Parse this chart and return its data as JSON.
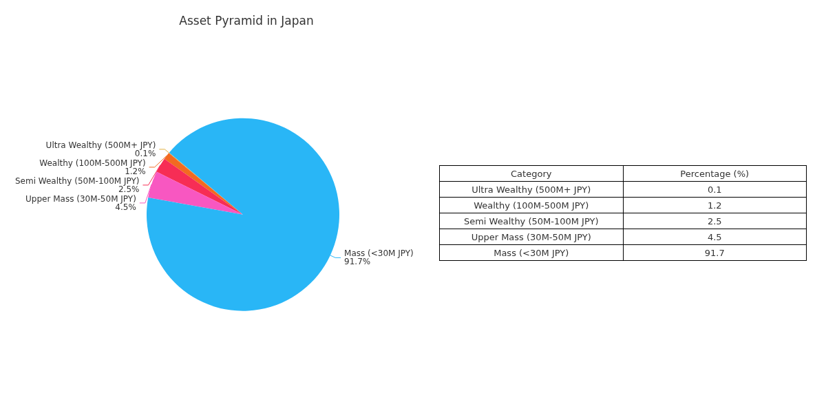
{
  "chart_data": [
    {
      "type": "pie",
      "title": "Asset Pyramid in Japan",
      "categories": [
        "Ultra Wealthy (500M+ JPY)",
        "Wealthy (100M-500M JPY)",
        "Semi Wealthy (50M-100M JPY)",
        "Upper Mass (30M-50M JPY)",
        "Mass (<30M JPY)"
      ],
      "values": [
        0.1,
        1.2,
        2.5,
        4.5,
        91.7
      ],
      "value_labels": [
        "0.1%",
        "1.2%",
        "2.5%",
        "4.5%",
        "91.7%"
      ],
      "colors": [
        "#e0b040",
        "#f26a21",
        "#f72d55",
        "#f857c1",
        "#29b6f6"
      ]
    },
    {
      "type": "other",
      "categories": [
        "Ultra Wealthy (500M+ JPY)",
        "Wealthy (100M-500M JPY)",
        "Semi Wealthy (50M-100M JPY)",
        "Upper Mass (30M-50M JPY)",
        "Mass (<30M JPY)"
      ],
      "values": [
        0.1,
        1.2,
        2.5,
        4.5,
        91.7
      ],
      "data_labels": true,
      "annotations": [
        "Category",
        "Percentage (%)"
      ]
    }
  ]
}
